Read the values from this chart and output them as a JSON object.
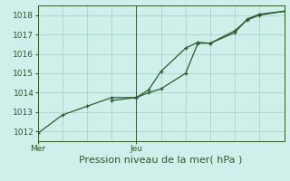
{
  "title": "Pression niveau de la mer( hPa )",
  "bg_color": "#cff0ea",
  "grid_color": "#aad4cc",
  "line_color": "#2d5a2d",
  "ylim": [
    1011.5,
    1018.5
  ],
  "yticks": [
    1012,
    1013,
    1014,
    1015,
    1016,
    1017,
    1018
  ],
  "xlim": [
    0,
    20
  ],
  "xtick_positions": [
    0,
    8
  ],
  "xtick_labels": [
    "Mer",
    "Jeu"
  ],
  "vline_x": 8,
  "series1_x": [
    0,
    2,
    4,
    6,
    8,
    9,
    10,
    12,
    13,
    14,
    16,
    17,
    18,
    20
  ],
  "series1_y": [
    1011.9,
    1012.85,
    1013.3,
    1013.75,
    1013.75,
    1014.15,
    1015.1,
    1016.3,
    1016.6,
    1016.55,
    1017.1,
    1017.8,
    1018.05,
    1018.2
  ],
  "series2_x": [
    6,
    8,
    9,
    10,
    12,
    13,
    14,
    16,
    17,
    18,
    20
  ],
  "series2_y": [
    1013.6,
    1013.75,
    1014.0,
    1014.2,
    1015.0,
    1016.55,
    1016.55,
    1017.2,
    1017.75,
    1018.0,
    1018.2
  ],
  "xlabel_fontsize": 8,
  "tick_fontsize": 6.5,
  "linewidth": 0.9,
  "markersize": 3.5
}
